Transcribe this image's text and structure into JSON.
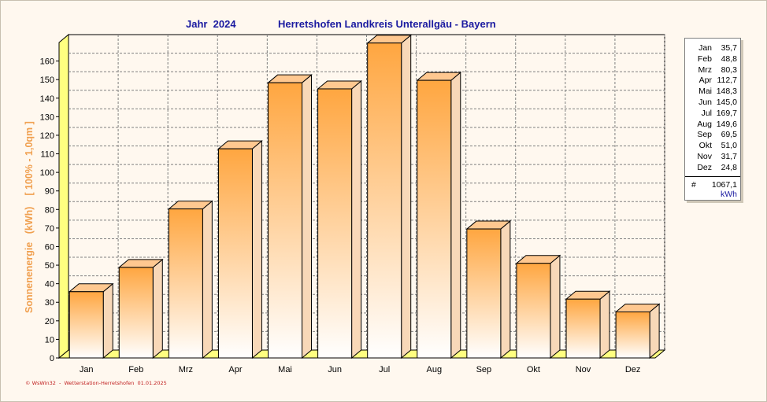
{
  "chart_data": {
    "type": "bar",
    "title_year": "Jahr  2024",
    "title": "Herretshofen Landkreis Unterallgäu - Bayern",
    "ylabel": "Sonnenenergie   (kWh)    [ 100% - 1,0qm ]",
    "xlabel": "",
    "categories": [
      "Jan",
      "Feb",
      "Mrz",
      "Apr",
      "Mai",
      "Jun",
      "Jul",
      "Aug",
      "Sep",
      "Okt",
      "Nov",
      "Dez"
    ],
    "values": [
      35.7,
      48.8,
      80.3,
      112.7,
      148.3,
      145.0,
      169.7,
      149.6,
      69.5,
      51.0,
      31.7,
      24.8
    ],
    "ylim": [
      0,
      170
    ],
    "yticks": [
      0,
      10,
      20,
      30,
      40,
      50,
      60,
      70,
      80,
      90,
      100,
      110,
      120,
      130,
      140,
      150,
      160
    ],
    "grid": true,
    "bar_style": "3d",
    "colors": {
      "bar_top": "#ffa640",
      "bar_bottom": "#ffffff",
      "bar_cap": "#ffc890",
      "bar_side": "#f8d8b8",
      "floor": "#ffff80",
      "wall": "#ffff80",
      "title": "#1a1aa0",
      "ylabel": "#f0a050"
    }
  },
  "legend": {
    "rows": [
      {
        "month": "Jan",
        "value": "35,7"
      },
      {
        "month": "Feb",
        "value": "48,8"
      },
      {
        "month": "Mrz",
        "value": "80,3"
      },
      {
        "month": "Apr",
        "value": "112,7"
      },
      {
        "month": "Mai",
        "value": "148,3"
      },
      {
        "month": "Jun",
        "value": "145,0"
      },
      {
        "month": "Jul",
        "value": "169,7"
      },
      {
        "month": "Aug",
        "value": "149,6"
      },
      {
        "month": "Sep",
        "value": "69,5"
      },
      {
        "month": "Okt",
        "value": "51,0"
      },
      {
        "month": "Nov",
        "value": "31,7"
      },
      {
        "month": "Dez",
        "value": "24,8"
      }
    ],
    "total_symbol": "#",
    "total_value": "1067,1",
    "unit": "kWh"
  },
  "footer": "© WsWin32  -  Wetterstation-Herretshofen  01.01.2025"
}
